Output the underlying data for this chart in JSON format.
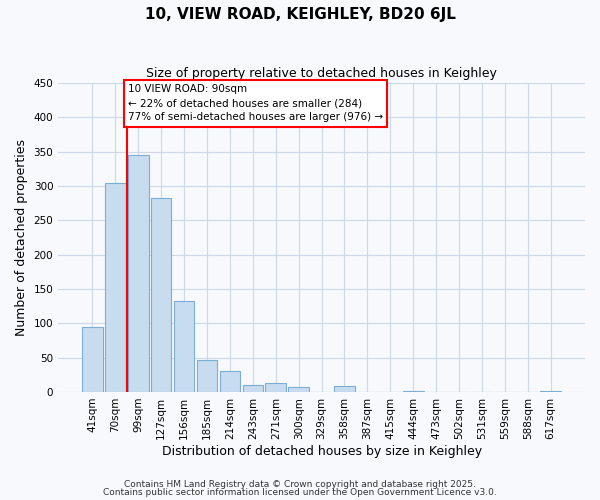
{
  "title": "10, VIEW ROAD, KEIGHLEY, BD20 6JL",
  "subtitle": "Size of property relative to detached houses in Keighley",
  "xlabel": "Distribution of detached houses by size in Keighley",
  "ylabel": "Number of detached properties",
  "bar_labels": [
    "41sqm",
    "70sqm",
    "99sqm",
    "127sqm",
    "156sqm",
    "185sqm",
    "214sqm",
    "243sqm",
    "271sqm",
    "300sqm",
    "329sqm",
    "358sqm",
    "387sqm",
    "415sqm",
    "444sqm",
    "473sqm",
    "502sqm",
    "531sqm",
    "559sqm",
    "588sqm",
    "617sqm"
  ],
  "bar_values": [
    95,
    305,
    345,
    283,
    133,
    47,
    30,
    10,
    13,
    7,
    0,
    8,
    0,
    0,
    1,
    0,
    0,
    0,
    0,
    0,
    1
  ],
  "bar_color": "#c8dcf0",
  "bar_edge_color": "#7aaed4",
  "vline_color": "red",
  "vline_x": 1.5,
  "annotation_title": "10 VIEW ROAD: 90sqm",
  "annotation_line1": "← 22% of detached houses are smaller (284)",
  "annotation_line2": "77% of semi-detached houses are larger (976) →",
  "annotation_box_color": "white",
  "annotation_box_edge": "red",
  "ylim": [
    0,
    450
  ],
  "yticks": [
    0,
    50,
    100,
    150,
    200,
    250,
    300,
    350,
    400,
    450
  ],
  "footer_line1": "Contains HM Land Registry data © Crown copyright and database right 2025.",
  "footer_line2": "Contains public sector information licensed under the Open Government Licence v3.0.",
  "background_color": "#f7f9fc",
  "grid_color": "#cdd8e8",
  "title_fontsize": 11,
  "subtitle_fontsize": 9,
  "xlabel_fontsize": 9,
  "ylabel_fontsize": 9,
  "tick_fontsize": 7.5,
  "footer_fontsize": 6.5
}
